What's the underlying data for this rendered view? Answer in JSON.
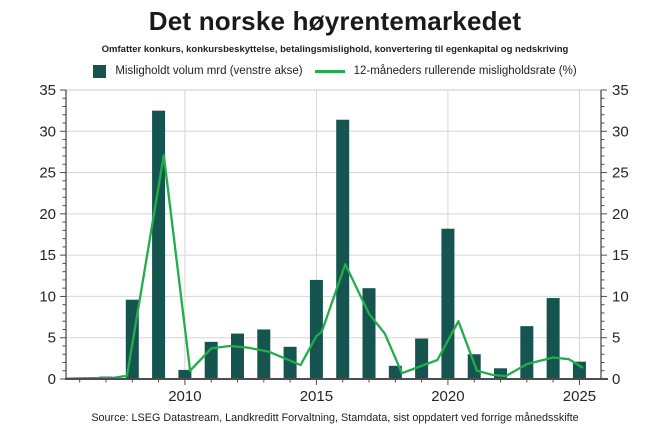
{
  "header": {
    "title": "Det norske høyrentemarkedet",
    "subtitle": "Omfatter konkurs, konkursbeskyttelse, betalingsmislighold, konvertering til egenkapital og nedskriving"
  },
  "legend": {
    "bars_label": "Misligholdt volum mrd (venstre akse)",
    "line_label": "12-måneders rullerende misligholdsrate (%)"
  },
  "footer": {
    "source": "Source: LSEG Datastream, Landkreditt Forvaltning, Stamdata, sist oppdatert ved forrige månedsskifte"
  },
  "colors": {
    "bar": "#16554F",
    "line": "#21AD4D",
    "grid": "#D6D6D6",
    "axis": "#4D4D4D",
    "top_spine": "#C9C9C9",
    "tick_text": "#262626"
  },
  "chart_data": {
    "type": "bar",
    "title": "Det norske høyrentemarkedet",
    "xlabel": "",
    "ylabel_left": "Misligholdt volum mrd",
    "ylabel_right": "12-måneders rullerende misligholdsrate (%)",
    "x_range": [
      2005.48,
      2025.82
    ],
    "y_range": [
      0,
      35
    ],
    "y_major_step": 5,
    "y_minor_step": 1,
    "x_labeled_ticks": [
      2010,
      2015,
      2020,
      2025
    ],
    "x_minor_years": [
      2006,
      2007,
      2008,
      2009,
      2011,
      2012,
      2013,
      2014,
      2016,
      2017,
      2018,
      2019,
      2021,
      2022,
      2023,
      2024
    ],
    "grid": true,
    "legend_position": "top",
    "series": [
      {
        "name": "Misligholdt volum mrd (venstre akse)",
        "kind": "bar",
        "axis": "left",
        "years": [
          2007,
          2008,
          2009,
          2010,
          2011,
          2012,
          2013,
          2014,
          2015,
          2016,
          2017,
          2018,
          2019,
          2020,
          2021,
          2022,
          2023,
          2024,
          2025
        ],
        "values": [
          0.3,
          9.6,
          32.5,
          1.1,
          4.5,
          5.5,
          6.0,
          3.9,
          12.0,
          31.4,
          11.0,
          1.6,
          4.9,
          18.2,
          3.0,
          1.3,
          6.4,
          9.8,
          2.1
        ]
      },
      {
        "name": "12-måneders rullerende misligholdsrate (%)",
        "kind": "line",
        "axis": "right",
        "points": [
          [
            2005.5,
            0.05
          ],
          [
            2006.5,
            0.1
          ],
          [
            2007.3,
            0.15
          ],
          [
            2007.8,
            0.4
          ],
          [
            2008.2,
            8.0
          ],
          [
            2009.2,
            27.1
          ],
          [
            2010.2,
            1.0
          ],
          [
            2011.0,
            3.7
          ],
          [
            2011.7,
            4.0
          ],
          [
            2012.4,
            3.8
          ],
          [
            2013.2,
            3.3
          ],
          [
            2014.4,
            1.7
          ],
          [
            2015.0,
            5.2
          ],
          [
            2015.2,
            5.7
          ],
          [
            2016.1,
            13.9
          ],
          [
            2017.0,
            7.9
          ],
          [
            2017.6,
            5.5
          ],
          [
            2018.25,
            0.7
          ],
          [
            2019.0,
            1.6
          ],
          [
            2019.6,
            2.3
          ],
          [
            2020.4,
            7.0
          ],
          [
            2021.1,
            1.0
          ],
          [
            2021.7,
            0.5
          ],
          [
            2022.2,
            0.35
          ],
          [
            2023.0,
            1.8
          ],
          [
            2024.0,
            2.6
          ],
          [
            2024.6,
            2.4
          ],
          [
            2025.1,
            1.4
          ]
        ]
      }
    ]
  }
}
